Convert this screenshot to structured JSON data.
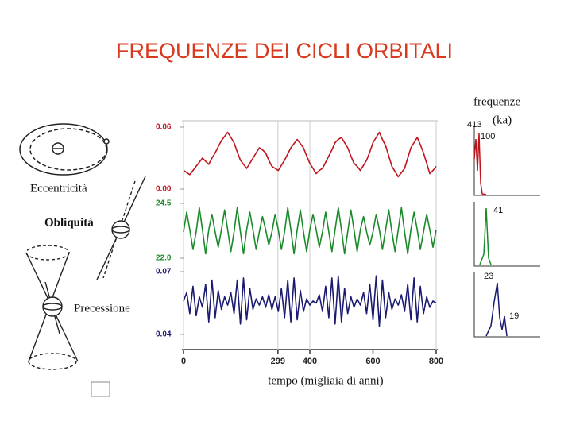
{
  "title": "FREQUENZE DEI CICLI ORBITALI",
  "diagram_labels": [
    "Eccentricità",
    "Obliquità",
    "Precessione"
  ],
  "spectra": {
    "title": [
      "frequenze",
      "(ka)"
    ],
    "peaks": [
      [
        413,
        100
      ],
      [
        41
      ],
      [
        23,
        19
      ]
    ]
  },
  "chart_data": {
    "type": "line",
    "xlabel": "tempo (migliaia di anni)",
    "xlim": [
      0,
      800
    ],
    "xticks": [
      0,
      299,
      400,
      600,
      800
    ],
    "x": [
      0,
      10,
      20,
      30,
      40,
      50,
      60,
      70,
      80,
      90,
      100,
      110,
      120,
      130,
      140,
      150,
      160,
      170,
      180,
      190,
      200,
      210,
      220,
      230,
      240,
      250,
      260,
      270,
      280,
      290,
      300,
      310,
      320,
      330,
      340,
      350,
      360,
      370,
      380,
      390,
      400,
      410,
      420,
      430,
      440,
      450,
      460,
      470,
      480,
      490,
      500,
      510,
      520,
      530,
      540,
      550,
      560,
      570,
      580,
      590,
      600,
      610,
      620,
      630,
      640,
      650,
      660,
      670,
      680,
      690,
      700,
      710,
      720,
      730,
      740,
      750,
      760,
      770,
      780,
      790,
      800
    ],
    "series": [
      {
        "color": "#c0141c",
        "ylim": [
          0,
          0.06
        ],
        "yticks": [
          {
            "value": 0,
            "label": "0.00"
          },
          0.06
        ],
        "values": [
          0.018,
          0.016,
          0.014,
          0.018,
          0.022,
          0.026,
          0.03,
          0.027,
          0.024,
          0.03,
          0.035,
          0.041,
          0.047,
          0.051,
          0.055,
          0.05,
          0.045,
          0.036,
          0.028,
          0.024,
          0.02,
          0.025,
          0.03,
          0.035,
          0.04,
          0.038,
          0.035,
          0.028,
          0.022,
          0.02,
          0.018,
          0.023,
          0.028,
          0.034,
          0.04,
          0.044,
          0.048,
          0.044,
          0.04,
          0.032,
          0.025,
          0.02,
          0.015,
          0.018,
          0.02,
          0.026,
          0.032,
          0.038,
          0.045,
          0.048,
          0.05,
          0.045,
          0.04,
          0.032,
          0.025,
          0.022,
          0.018,
          0.023,
          0.028,
          0.036,
          0.045,
          0.05,
          0.055,
          0.048,
          0.042,
          0.032,
          0.022,
          0.017,
          0.012,
          0.016,
          0.02,
          0.03,
          0.04,
          0.045,
          0.05,
          0.043,
          0.035,
          0.025,
          0.015,
          0.018,
          0.022
        ]
      },
      {
        "color": "#1a8a2a",
        "ylim": [
          22,
          24.5
        ],
        "yticks": [
          24.5,
          {
            "value": 22,
            "label": "22.0"
          }
        ],
        "values": [
          23.2,
          24.1,
          23.3,
          22.4,
          23.2,
          24.3,
          23.3,
          22.2,
          23.3,
          24.0,
          23.2,
          22.5,
          23.3,
          24.2,
          23.3,
          22.3,
          23.2,
          24.3,
          23.2,
          22.2,
          23.3,
          24.1,
          23.3,
          22.4,
          23.2,
          23.9,
          23.3,
          22.6,
          23.2,
          24.0,
          23.3,
          22.4,
          23.2,
          24.3,
          23.3,
          22.2,
          23.3,
          24.2,
          23.2,
          22.3,
          23.3,
          24.0,
          23.3,
          22.5,
          23.2,
          24.1,
          23.2,
          22.3,
          23.3,
          24.3,
          23.3,
          22.2,
          23.2,
          24.2,
          23.3,
          22.3,
          23.3,
          23.9,
          23.2,
          22.6,
          23.2,
          24.0,
          23.3,
          22.4,
          23.3,
          24.2,
          23.2,
          22.3,
          23.3,
          24.3,
          23.2,
          22.2,
          23.3,
          24.1,
          23.3,
          22.4,
          23.2,
          24.0,
          23.3,
          22.5,
          23.3
        ]
      },
      {
        "color": "#1a1a70",
        "ylim": [
          0.04,
          0.07
        ],
        "yticks": [
          0.07,
          0.04
        ],
        "values": [
          0.056,
          0.06,
          0.05,
          0.063,
          0.049,
          0.058,
          0.053,
          0.064,
          0.046,
          0.066,
          0.048,
          0.061,
          0.052,
          0.058,
          0.054,
          0.06,
          0.05,
          0.066,
          0.045,
          0.067,
          0.047,
          0.062,
          0.052,
          0.057,
          0.054,
          0.058,
          0.053,
          0.059,
          0.052,
          0.058,
          0.051,
          0.062,
          0.048,
          0.066,
          0.046,
          0.067,
          0.047,
          0.061,
          0.051,
          0.057,
          0.054,
          0.056,
          0.055,
          0.059,
          0.051,
          0.063,
          0.048,
          0.067,
          0.045,
          0.068,
          0.046,
          0.062,
          0.05,
          0.058,
          0.053,
          0.057,
          0.054,
          0.06,
          0.05,
          0.064,
          0.047,
          0.068,
          0.044,
          0.066,
          0.048,
          0.06,
          0.052,
          0.057,
          0.054,
          0.059,
          0.051,
          0.064,
          0.047,
          0.067,
          0.046,
          0.063,
          0.05,
          0.058,
          0.053,
          0.056,
          0.055
        ]
      }
    ]
  }
}
